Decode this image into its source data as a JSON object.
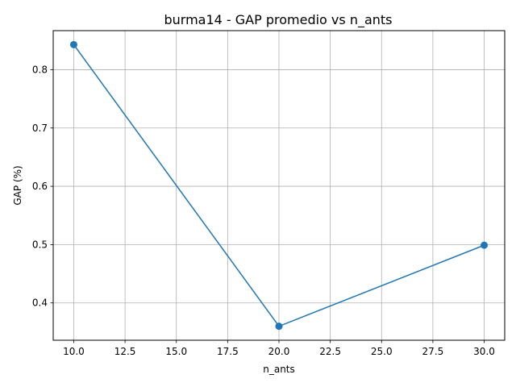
{
  "chart_data": {
    "type": "line",
    "title": "burma14 - GAP promedio vs n_ants",
    "xlabel": "n_ants",
    "ylabel": "GAP (%)",
    "x": [
      10,
      20,
      30
    ],
    "series": [
      {
        "values": [
          0.843,
          0.36,
          0.499
        ],
        "color": "#1f77b4",
        "marker": "circle"
      }
    ],
    "xlim": [
      9.0,
      31.0
    ],
    "ylim": [
      0.336,
      0.867
    ],
    "xticks": [
      10.0,
      12.5,
      15.0,
      17.5,
      20.0,
      22.5,
      25.0,
      27.5,
      30.0
    ],
    "xtick_labels": [
      "10.0",
      "12.5",
      "15.0",
      "17.5",
      "20.0",
      "22.5",
      "25.0",
      "27.5",
      "30.0"
    ],
    "yticks": [
      0.4,
      0.5,
      0.6,
      0.7,
      0.8
    ],
    "ytick_labels": [
      "0.4",
      "0.5",
      "0.6",
      "0.7",
      "0.8"
    ],
    "grid": true,
    "legend": "none"
  }
}
